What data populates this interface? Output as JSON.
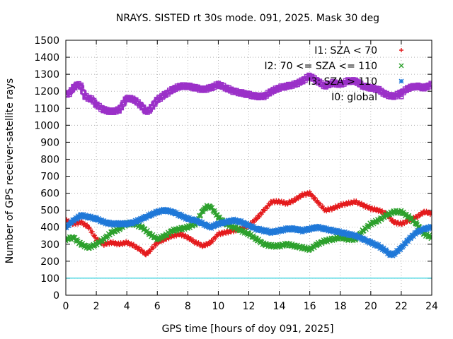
{
  "chart_data": {
    "type": "scatter",
    "title": "NRAYS. SISTED rt 30s mode. 091, 2025. Mask 30 deg",
    "xlabel": "GPS time [hours of doy 091, 2025]",
    "ylabel": "Number of GPS receiver-satellite rays",
    "xlim": [
      0,
      24
    ],
    "ylim": [
      0,
      1500
    ],
    "x_ticks": [
      "0",
      "2",
      "4",
      "6",
      "8",
      "10",
      "12",
      "14",
      "16",
      "18",
      "20",
      "22",
      "24"
    ],
    "y_ticks": [
      "0",
      "100",
      "200",
      "300",
      "400",
      "500",
      "600",
      "700",
      "800",
      "900",
      "1000",
      "1100",
      "1200",
      "1300",
      "1400",
      "1500"
    ],
    "grid": true,
    "legend_position": "top-right",
    "reference_line": {
      "y": 100,
      "color": "#00c8d8"
    },
    "series": [
      {
        "name": "I1: SZA < 70",
        "marker": "+",
        "color": "#e41a1c",
        "x": [
          0,
          0.5,
          1,
          1.5,
          2,
          2.5,
          3,
          3.5,
          4,
          4.5,
          5,
          5.25,
          5.5,
          6,
          6.5,
          7,
          7.5,
          8,
          8.5,
          9,
          9.5,
          10,
          10.5,
          11,
          11.5,
          12,
          12.5,
          13,
          13.5,
          14,
          14.5,
          15,
          15.5,
          16,
          16.5,
          17,
          17.5,
          18,
          18.5,
          19,
          19.5,
          20,
          20.5,
          21,
          21.5,
          22,
          22.5,
          23,
          23.5,
          24
        ],
        "values": [
          440,
          420,
          430,
          400,
          330,
          300,
          310,
          300,
          310,
          290,
          260,
          240,
          260,
          310,
          330,
          350,
          360,
          340,
          310,
          290,
          310,
          360,
          370,
          380,
          390,
          410,
          450,
          500,
          550,
          550,
          540,
          560,
          590,
          600,
          550,
          500,
          510,
          530,
          540,
          550,
          530,
          510,
          500,
          480,
          430,
          420,
          440,
          460,
          490,
          480
        ]
      },
      {
        "name": "I2: 70 <= SZA <= 110",
        "marker": "x",
        "color": "#2ca02c",
        "x": [
          0,
          0.5,
          1,
          1.5,
          2,
          2.5,
          3,
          3.5,
          4,
          4.5,
          5,
          5.5,
          6,
          6.5,
          7,
          7.5,
          8,
          8.5,
          9,
          9.25,
          9.5,
          10,
          10.5,
          11,
          11.5,
          12,
          12.5,
          13,
          13.5,
          14,
          14.5,
          15,
          15.5,
          16,
          16.5,
          17,
          17.5,
          18,
          18.5,
          19,
          19.5,
          20,
          20.5,
          21,
          21.5,
          22,
          22.5,
          23,
          23.5,
          24
        ],
        "values": [
          330,
          340,
          300,
          280,
          300,
          330,
          370,
          390,
          420,
          420,
          400,
          360,
          330,
          350,
          380,
          390,
          400,
          420,
          500,
          520,
          520,
          460,
          420,
          400,
          380,
          360,
          330,
          300,
          290,
          290,
          300,
          290,
          280,
          270,
          300,
          320,
          330,
          340,
          330,
          330,
          380,
          420,
          440,
          470,
          490,
          490,
          460,
          420,
          360,
          340
        ]
      },
      {
        "name": "I3: SZA > 110",
        "marker": "*",
        "color": "#1f78d8",
        "x": [
          0,
          0.5,
          1,
          1.5,
          2,
          2.5,
          3,
          3.5,
          4,
          4.5,
          5,
          5.5,
          6,
          6.5,
          7,
          7.5,
          8,
          8.5,
          9,
          9.5,
          10,
          10.5,
          11,
          11.5,
          12,
          12.5,
          13,
          13.5,
          14,
          14.5,
          15,
          15.5,
          16,
          16.5,
          17,
          17.5,
          18,
          18.5,
          19,
          19.5,
          20,
          20.5,
          21,
          21.25,
          21.5,
          22,
          22.5,
          23,
          23.5,
          24
        ],
        "values": [
          400,
          440,
          470,
          460,
          450,
          430,
          420,
          420,
          420,
          430,
          450,
          470,
          490,
          500,
          490,
          470,
          450,
          440,
          420,
          400,
          420,
          430,
          440,
          430,
          410,
          390,
          380,
          370,
          380,
          390,
          390,
          380,
          390,
          400,
          390,
          380,
          370,
          360,
          350,
          330,
          310,
          290,
          260,
          240,
          240,
          280,
          330,
          370,
          390,
          400
        ]
      },
      {
        "name": "I0: global",
        "marker": "square",
        "color": "#9b30c8",
        "x": [
          0,
          0.25,
          0.5,
          0.75,
          1,
          1.25,
          1.5,
          1.75,
          2,
          2.5,
          3,
          3.5,
          4,
          4.5,
          5,
          5.25,
          5.5,
          6,
          6.5,
          7,
          7.5,
          8,
          8.5,
          9,
          9.5,
          10,
          10.5,
          11,
          11.5,
          12,
          12.5,
          13,
          13.5,
          14,
          14.5,
          15,
          15.5,
          16,
          16.5,
          17,
          17.5,
          18,
          18.5,
          19,
          19.5,
          20,
          20.5,
          21,
          21.5,
          22,
          22.5,
          23,
          23.5,
          24
        ],
        "values": [
          1180,
          1190,
          1220,
          1240,
          1230,
          1170,
          1160,
          1150,
          1120,
          1090,
          1080,
          1090,
          1160,
          1150,
          1110,
          1080,
          1090,
          1150,
          1180,
          1210,
          1230,
          1230,
          1220,
          1210,
          1220,
          1240,
          1220,
          1200,
          1190,
          1180,
          1170,
          1170,
          1200,
          1220,
          1230,
          1240,
          1260,
          1290,
          1260,
          1230,
          1250,
          1240,
          1260,
          1260,
          1230,
          1220,
          1210,
          1180,
          1170,
          1190,
          1220,
          1230,
          1220,
          1240
        ]
      }
    ]
  }
}
